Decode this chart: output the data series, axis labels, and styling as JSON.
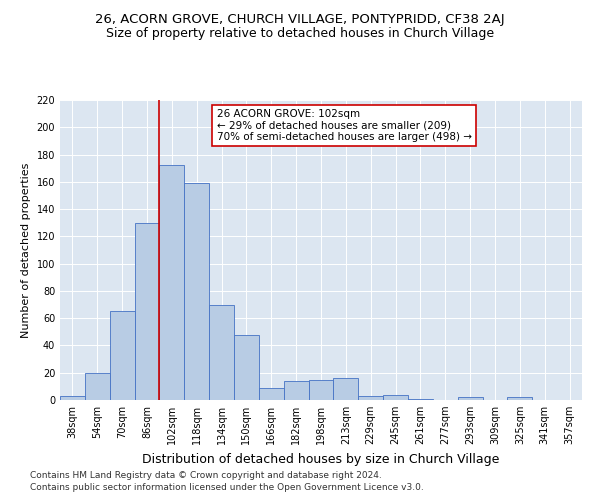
{
  "title1": "26, ACORN GROVE, CHURCH VILLAGE, PONTYPRIDD, CF38 2AJ",
  "title2": "Size of property relative to detached houses in Church Village",
  "xlabel": "Distribution of detached houses by size in Church Village",
  "ylabel": "Number of detached properties",
  "bin_labels": [
    "38sqm",
    "54sqm",
    "70sqm",
    "86sqm",
    "102sqm",
    "118sqm",
    "134sqm",
    "150sqm",
    "166sqm",
    "182sqm",
    "198sqm",
    "213sqm",
    "229sqm",
    "245sqm",
    "261sqm",
    "277sqm",
    "293sqm",
    "309sqm",
    "325sqm",
    "341sqm",
    "357sqm"
  ],
  "bar_heights": [
    3,
    20,
    65,
    130,
    172,
    159,
    70,
    48,
    9,
    14,
    15,
    16,
    3,
    4,
    1,
    0,
    2,
    0,
    2,
    0,
    0
  ],
  "bar_color": "#b8cce4",
  "bar_edge_color": "#4472c4",
  "vline_x": 4,
  "vline_color": "#cc0000",
  "annotation_line1": "26 ACORN GROVE: 102sqm",
  "annotation_line2": "← 29% of detached houses are smaller (209)",
  "annotation_line3": "70% of semi-detached houses are larger (498) →",
  "annotation_box_color": "white",
  "annotation_box_edge": "#cc0000",
  "ylim": [
    0,
    220
  ],
  "yticks": [
    0,
    20,
    40,
    60,
    80,
    100,
    120,
    140,
    160,
    180,
    200,
    220
  ],
  "footnote1": "Contains HM Land Registry data © Crown copyright and database right 2024.",
  "footnote2": "Contains public sector information licensed under the Open Government Licence v3.0.",
  "plot_bg_color": "#dce6f1",
  "title1_fontsize": 9.5,
  "title2_fontsize": 9,
  "xlabel_fontsize": 9,
  "ylabel_fontsize": 8,
  "tick_fontsize": 7,
  "annotation_fontsize": 7.5,
  "footnote_fontsize": 6.5
}
